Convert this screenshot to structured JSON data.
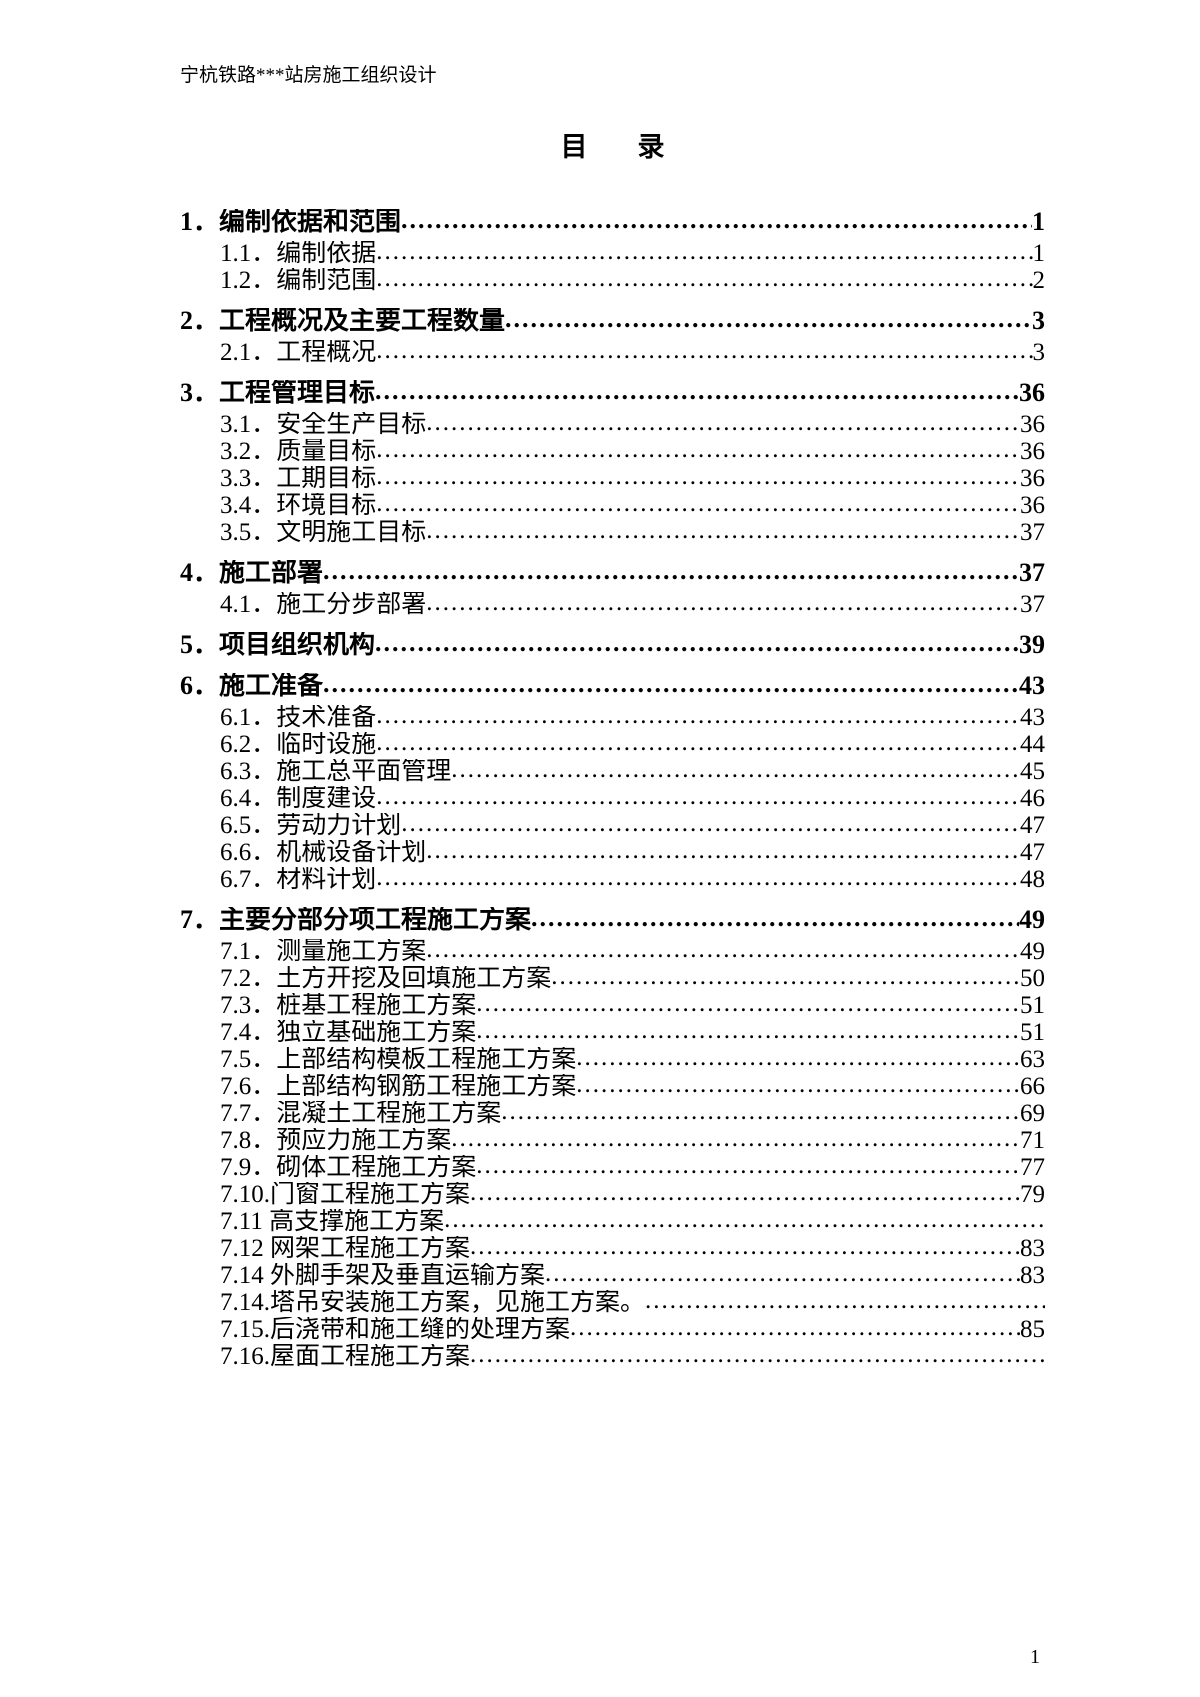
{
  "header": "宁杭铁路***站房施工组织设计",
  "title_left": "目",
  "title_right": "录",
  "page_number": "1",
  "entries": [
    {
      "level": 1,
      "label": "1．编制依据和范围",
      "page": "1",
      "first": true
    },
    {
      "level": 2,
      "label": "1.1．编制依据",
      "page": "1"
    },
    {
      "level": 2,
      "label": "1.2．编制范围",
      "page": "2"
    },
    {
      "level": 1,
      "label": "2．工程概况及主要工程数量",
      "page": "3"
    },
    {
      "level": 2,
      "label": "2.1．工程概况",
      "page": "3"
    },
    {
      "level": 1,
      "label": "3．工程管理目标",
      "page": "36"
    },
    {
      "level": 2,
      "label": "3.1．安全生产目标",
      "page": "36"
    },
    {
      "level": 2,
      "label": "3.2．质量目标",
      "page": "36"
    },
    {
      "level": 2,
      "label": "3.3．工期目标",
      "page": "36"
    },
    {
      "level": 2,
      "label": "3.4．环境目标",
      "page": "36"
    },
    {
      "level": 2,
      "label": "3.5．文明施工目标",
      "page": "37"
    },
    {
      "level": 1,
      "label": "4．施工部署",
      "page": "37"
    },
    {
      "level": 2,
      "label": "4.1．施工分步部署",
      "page": "37"
    },
    {
      "level": 1,
      "label": "5．项目组织机构",
      "page": "39"
    },
    {
      "level": 1,
      "label": "6．施工准备",
      "page": "43"
    },
    {
      "level": 2,
      "label": "6.1．技术准备",
      "page": "43"
    },
    {
      "level": 2,
      "label": "6.2．临时设施",
      "page": "44"
    },
    {
      "level": 2,
      "label": "6.3．施工总平面管理",
      "page": "45"
    },
    {
      "level": 2,
      "label": "6.4．制度建设",
      "page": "46"
    },
    {
      "level": 2,
      "label": "6.5．劳动力计划",
      "page": "47"
    },
    {
      "level": 2,
      "label": "6.6．机械设备计划",
      "page": "47"
    },
    {
      "level": 2,
      "label": "6.7．材料计划",
      "page": "48"
    },
    {
      "level": 1,
      "label": "7．主要分部分项工程施工方案",
      "page": "49"
    },
    {
      "level": 2,
      "label": "7.1．测量施工方案",
      "page": "49"
    },
    {
      "level": 2,
      "label": "7.2．土方开挖及回填施工方案",
      "page": "50"
    },
    {
      "level": 2,
      "label": "7.3．桩基工程施工方案",
      "page": "51"
    },
    {
      "level": 2,
      "label": "7.4．独立基础施工方案",
      "page": "51"
    },
    {
      "level": 2,
      "label": "7.5．上部结构模板工程施工方案",
      "page": "63"
    },
    {
      "level": 2,
      "label": "7.6．上部结构钢筋工程施工方案",
      "page": "66"
    },
    {
      "level": 2,
      "label": "7.7．混凝土工程施工方案",
      "page": "69"
    },
    {
      "level": 2,
      "label": "7.8．预应力施工方案",
      "page": "71"
    },
    {
      "level": 2,
      "label": "7.9．砌体工程施工方案",
      "page": "77"
    },
    {
      "level": 2,
      "label": "7.10.门窗工程施工方案",
      "page": "79"
    },
    {
      "level": 2,
      "label": "7.11 高支撑施工方案",
      "page": ""
    },
    {
      "level": 2,
      "label": "7.12 网架工程施工方案",
      "page": "83"
    },
    {
      "level": 2,
      "label": "7.14 外脚手架及垂直运输方案",
      "page": "83"
    },
    {
      "level": 2,
      "label": "7.14.塔吊安装施工方案，见施工方案。",
      "page": ""
    },
    {
      "level": 2,
      "label": "7.15.后浇带和施工缝的处理方案",
      "page": "85"
    },
    {
      "level": 2,
      "label": "7.16.屋面工程施工方案",
      "page": ""
    }
  ]
}
